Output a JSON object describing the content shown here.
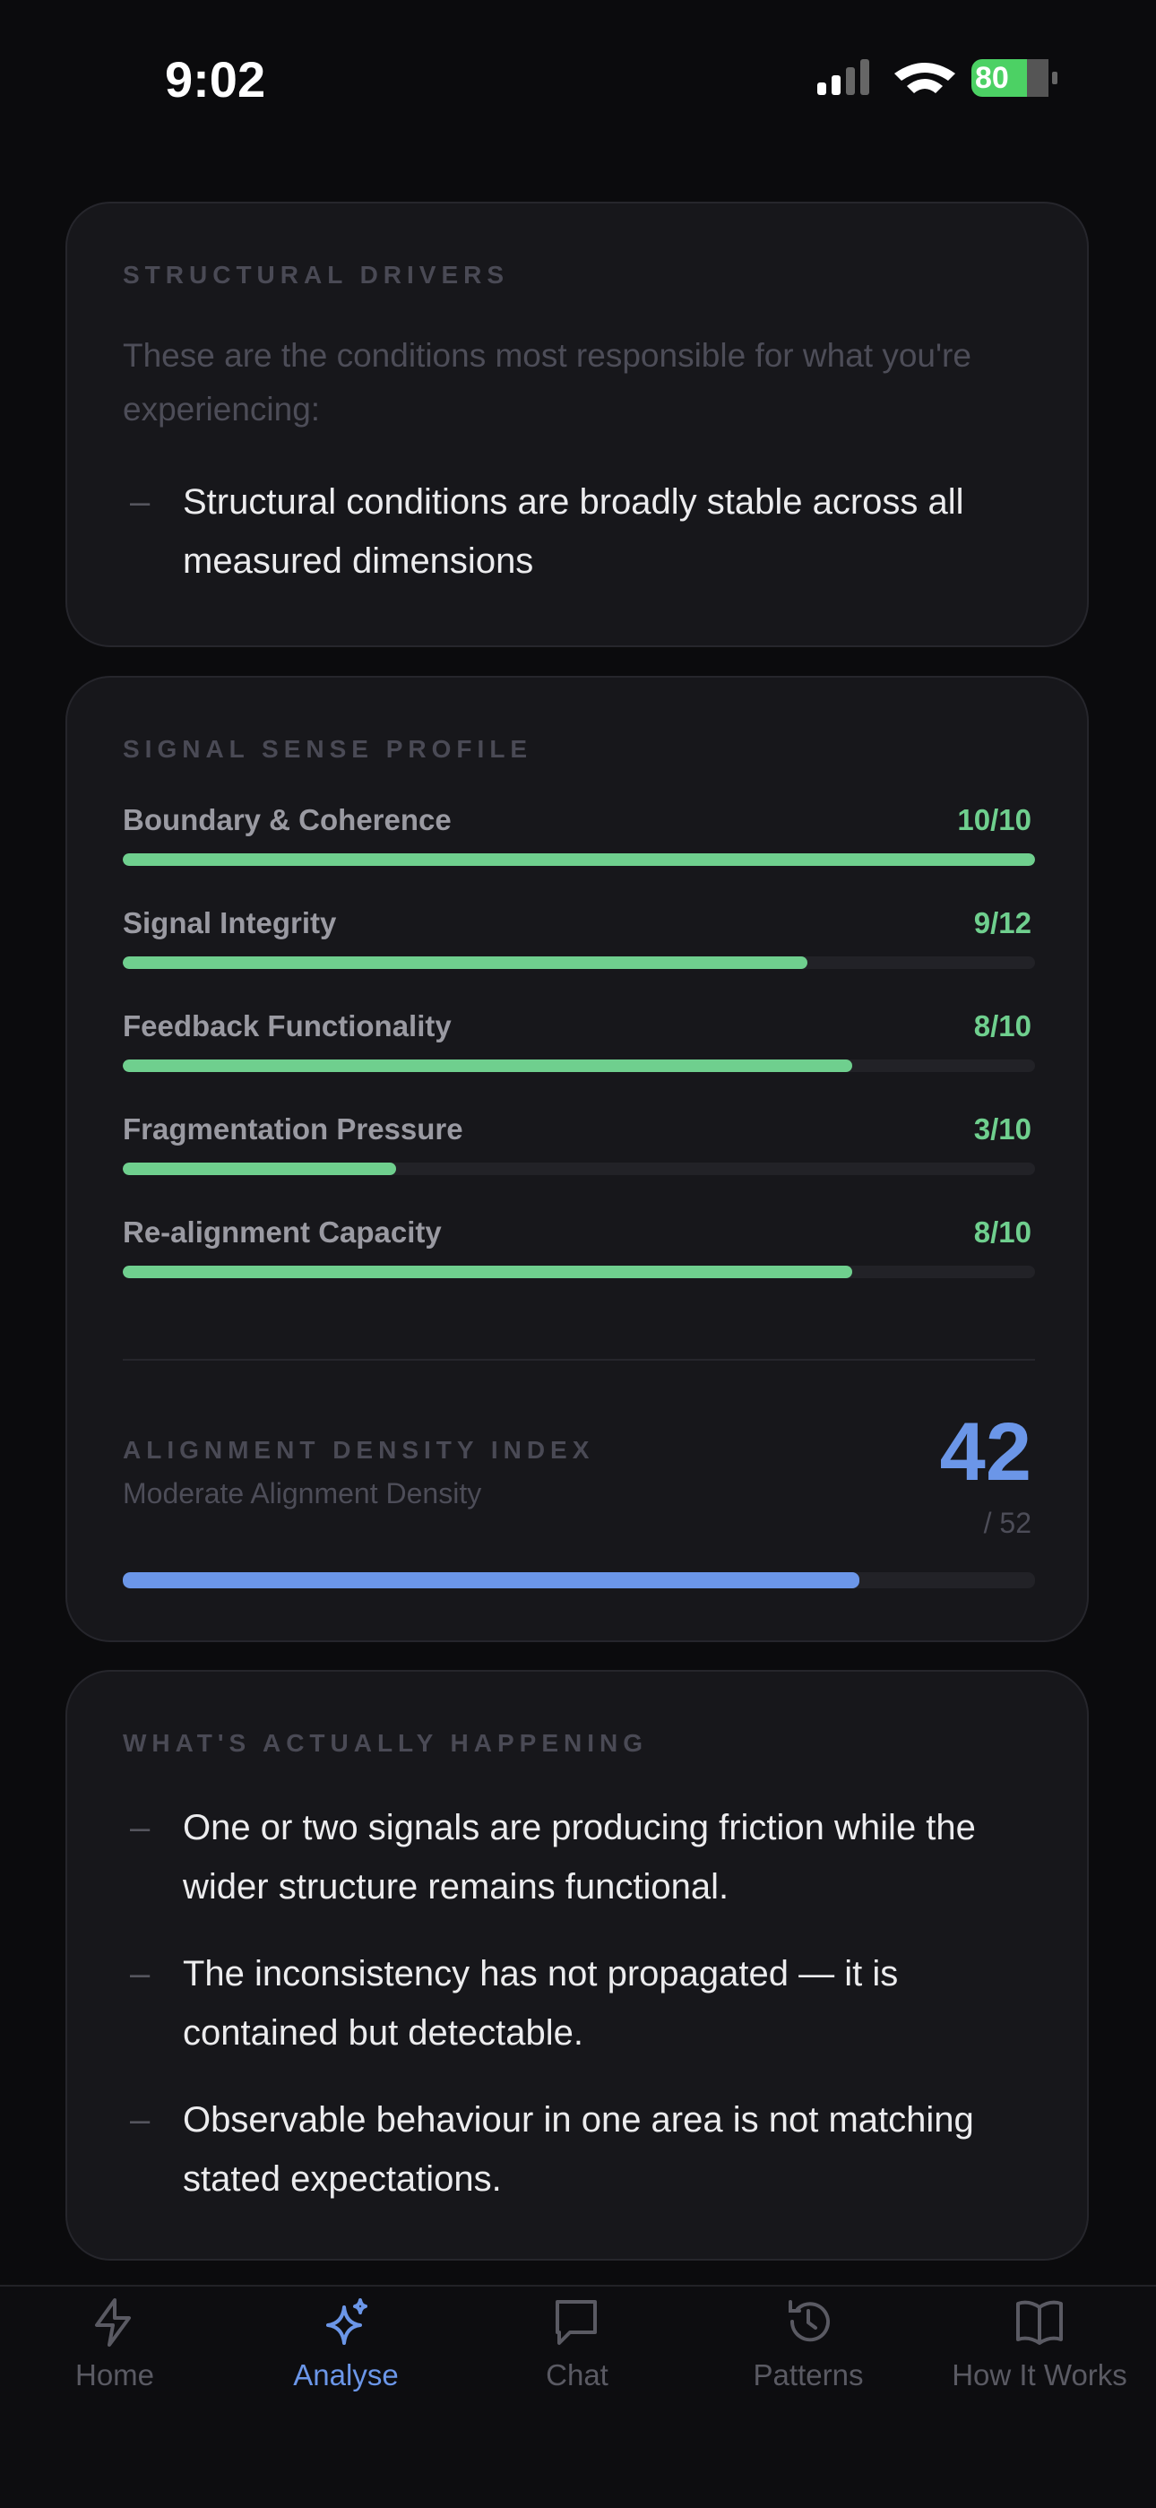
{
  "status_bar": {
    "time": "9:02",
    "battery": "80"
  },
  "drivers": {
    "heading": "STRUCTURAL DRIVERS",
    "intro": "These are the conditions most responsible for what you're experiencing:",
    "bullets": [
      "Structural conditions are broadly stable across all measured dimensions"
    ]
  },
  "profile": {
    "heading": "SIGNAL SENSE PROFILE",
    "items": [
      {
        "name": "Boundary & Coherence",
        "value": 10,
        "max": 10,
        "value_label": "10/10"
      },
      {
        "name": "Signal Integrity",
        "value": 9,
        "max": 12,
        "value_label": "9/12"
      },
      {
        "name": "Feedback Functionality",
        "value": 8,
        "max": 10,
        "value_label": "8/10"
      },
      {
        "name": "Fragmentation Pressure",
        "value": 3,
        "max": 10,
        "value_label": "3/10"
      },
      {
        "name": "Re-alignment Capacity",
        "value": 8,
        "max": 10,
        "value_label": "8/10"
      }
    ],
    "index": {
      "heading": "ALIGNMENT DENSITY INDEX",
      "subtitle": "Moderate Alignment Density",
      "value": 42,
      "max": 52,
      "max_label": "/ 52"
    }
  },
  "happening": {
    "heading": "WHAT'S ACTUALLY HAPPENING",
    "bullets": [
      "One or two signals are producing friction while the wider structure remains functional.",
      "The inconsistency has not propagated — it is contained but detectable.",
      "Observable behaviour in one area is not matching stated expectations."
    ]
  },
  "nav": {
    "active": 1,
    "tabs": [
      "Home",
      "Analyse",
      "Chat",
      "Patterns",
      "How It Works"
    ]
  }
}
